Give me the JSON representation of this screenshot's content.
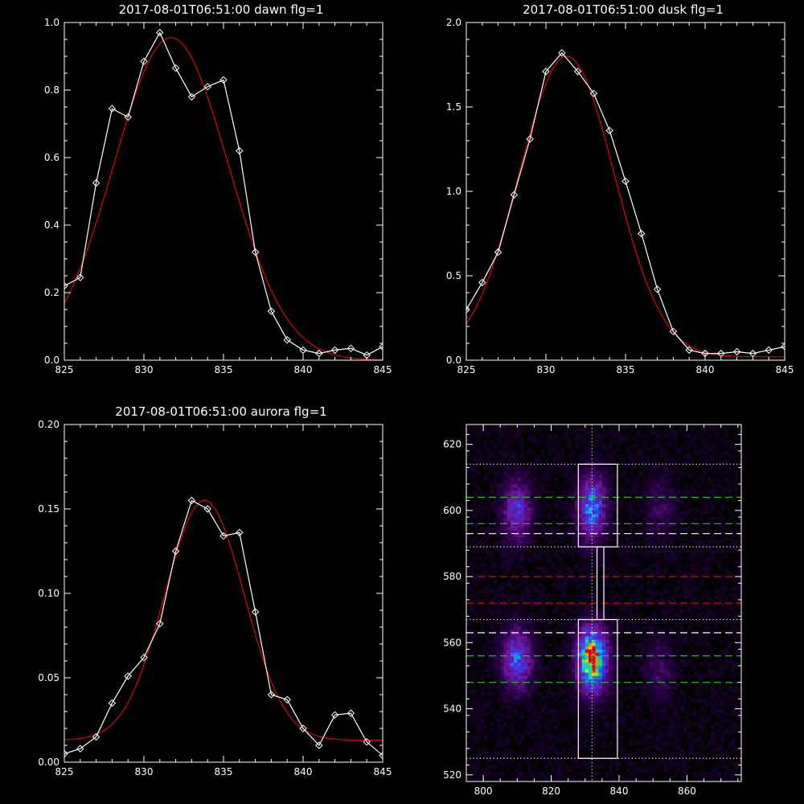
{
  "colors": {
    "background": "#000000",
    "axes": "#ffffff",
    "observed": "#ffffff",
    "fit": "#e00000",
    "guide_green": "#22c322",
    "guide_red": "#e00000",
    "guide_white": "#ffffff"
  },
  "chart_data": [
    {
      "type": "line",
      "title": "2017-08-01T06:51:00 dawn flg=1",
      "xlim": [
        825,
        845
      ],
      "ylim": [
        0,
        1.0
      ],
      "xticks": [
        "825",
        "830",
        "835",
        "840",
        "845"
      ],
      "xtick_values": [
        825,
        830,
        835,
        840,
        845
      ],
      "yticks": [
        "0.0",
        "0.2",
        "0.4",
        "0.6",
        "0.8",
        "1.0"
      ],
      "ytick_values": [
        0,
        0.2,
        0.4,
        0.6,
        0.8,
        1.0
      ],
      "series": [
        {
          "style": "white-line-diamond",
          "x": [
            825,
            826,
            827,
            828,
            829,
            830,
            831,
            832,
            833,
            834,
            835,
            836,
            837,
            838,
            839,
            840,
            841,
            842,
            843,
            844,
            845
          ],
          "y": [
            0.22,
            0.245,
            0.525,
            0.745,
            0.72,
            0.885,
            0.97,
            0.865,
            0.78,
            0.81,
            0.83,
            0.62,
            0.32,
            0.145,
            0.06,
            0.03,
            0.02,
            0.03,
            0.035,
            0.015,
            0.04
          ]
        },
        {
          "style": "red-fit",
          "gauss": {
            "a": 0.955,
            "mu": 831.7,
            "sigma": 3.6,
            "c": 0.0,
            "d": 0.0
          }
        }
      ]
    },
    {
      "type": "line",
      "title": "2017-08-01T06:51:00 dusk flg=1",
      "xlim": [
        825,
        845
      ],
      "ylim": [
        0,
        2.0
      ],
      "xticks": [
        "825",
        "830",
        "835",
        "840",
        "845"
      ],
      "xtick_values": [
        825,
        830,
        835,
        840,
        845
      ],
      "yticks": [
        "0.0",
        "0.5",
        "1.0",
        "1.5",
        "2.0"
      ],
      "ytick_values": [
        0,
        0.5,
        1.0,
        1.5,
        2.0
      ],
      "series": [
        {
          "style": "white-line-diamond",
          "x": [
            825,
            826,
            827,
            828,
            829,
            830,
            831,
            832,
            833,
            834,
            835,
            836,
            837,
            838,
            839,
            840,
            841,
            842,
            843,
            844,
            845
          ],
          "y": [
            0.3,
            0.46,
            0.64,
            0.98,
            1.31,
            1.71,
            1.82,
            1.71,
            1.58,
            1.36,
            1.06,
            0.75,
            0.42,
            0.17,
            0.06,
            0.04,
            0.04,
            0.05,
            0.04,
            0.06,
            0.08
          ]
        },
        {
          "style": "red-fit",
          "gauss": {
            "a": 1.78,
            "mu": 831.3,
            "sigma": 3.0,
            "c": 0.02,
            "d": 0.0
          }
        }
      ]
    },
    {
      "type": "line",
      "title": "2017-08-01T06:51:00 aurora flg=1",
      "xlim": [
        825,
        845
      ],
      "ylim": [
        0,
        0.2
      ],
      "xticks": [
        "825",
        "830",
        "835",
        "840",
        "845"
      ],
      "xtick_values": [
        825,
        830,
        835,
        840,
        845
      ],
      "yticks": [
        "0.00",
        "0.05",
        "0.10",
        "0.15",
        "0.20"
      ],
      "ytick_values": [
        0,
        0.05,
        0.1,
        0.15,
        0.2
      ],
      "series": [
        {
          "style": "white-line-diamond",
          "x": [
            825,
            826,
            827,
            828,
            829,
            830,
            831,
            832,
            833,
            834,
            835,
            836,
            837,
            838,
            839,
            840,
            841,
            842,
            843,
            844,
            845
          ],
          "y": [
            0.005,
            0.008,
            0.015,
            0.035,
            0.051,
            0.062,
            0.082,
            0.125,
            0.155,
            0.15,
            0.134,
            0.136,
            0.089,
            0.04,
            0.037,
            0.02,
            0.01,
            0.028,
            0.029,
            0.012,
            0.004
          ]
        },
        {
          "style": "red-fit",
          "gauss": {
            "a": 0.142,
            "mu": 833.8,
            "sigma": 2.5,
            "c": 0.013,
            "d": 0.0
          }
        }
      ]
    },
    {
      "type": "heatmap",
      "title": "",
      "xlim": [
        795,
        876
      ],
      "ylim": [
        518,
        626
      ],
      "xticks": [
        "800",
        "820",
        "840",
        "860"
      ],
      "xtick_values": [
        800,
        820,
        840,
        860
      ],
      "yticks": [
        "520",
        "540",
        "560",
        "580",
        "600",
        "620"
      ],
      "ytick_values": [
        520,
        540,
        560,
        580,
        600,
        620
      ],
      "blobs": [
        {
          "x": 810,
          "y": 600,
          "sx": 2.8,
          "sy": 6,
          "amp": 0.38
        },
        {
          "x": 810,
          "y": 555,
          "sx": 3.0,
          "sy": 6,
          "amp": 0.45
        },
        {
          "x": 832,
          "y": 601,
          "sx": 2.8,
          "sy": 6.5,
          "amp": 0.5
        },
        {
          "x": 832,
          "y": 555,
          "sx": 3.0,
          "sy": 6.5,
          "amp": 0.85
        },
        {
          "x": 832,
          "y": 556,
          "sx": 1.2,
          "sy": 2.5,
          "amp": 0.3
        },
        {
          "x": 852,
          "y": 601,
          "sx": 3.0,
          "sy": 6,
          "amp": 0.13
        },
        {
          "x": 852,
          "y": 552,
          "sx": 3.0,
          "sy": 6,
          "amp": 0.14
        }
      ],
      "boxes": [
        {
          "x0": 828,
          "x1": 839.5,
          "y0": 589,
          "y1": 614
        },
        {
          "x0": 833.5,
          "x1": 835.5,
          "y0": 567,
          "y1": 589
        },
        {
          "x0": 828,
          "x1": 839.5,
          "y0": 525,
          "y1": 567
        }
      ],
      "vline_x": 832,
      "hlines": [
        {
          "y": 614,
          "color": "white",
          "dash": "dot"
        },
        {
          "y": 604,
          "color": "green",
          "dash": "dash"
        },
        {
          "y": 596,
          "color": "green",
          "dash": "dash"
        },
        {
          "y": 593,
          "color": "white",
          "dash": "dash"
        },
        {
          "y": 589,
          "color": "white",
          "dash": "dot"
        },
        {
          "y": 580,
          "color": "red",
          "dash": "dash"
        },
        {
          "y": 572,
          "color": "red",
          "dash": "dash"
        },
        {
          "y": 567,
          "color": "white",
          "dash": "dot"
        },
        {
          "y": 563,
          "color": "white",
          "dash": "dash"
        },
        {
          "y": 556,
          "color": "green",
          "dash": "dash"
        },
        {
          "y": 548,
          "color": "green",
          "dash": "dash"
        },
        {
          "y": 525,
          "color": "white",
          "dash": "dot"
        }
      ]
    }
  ]
}
